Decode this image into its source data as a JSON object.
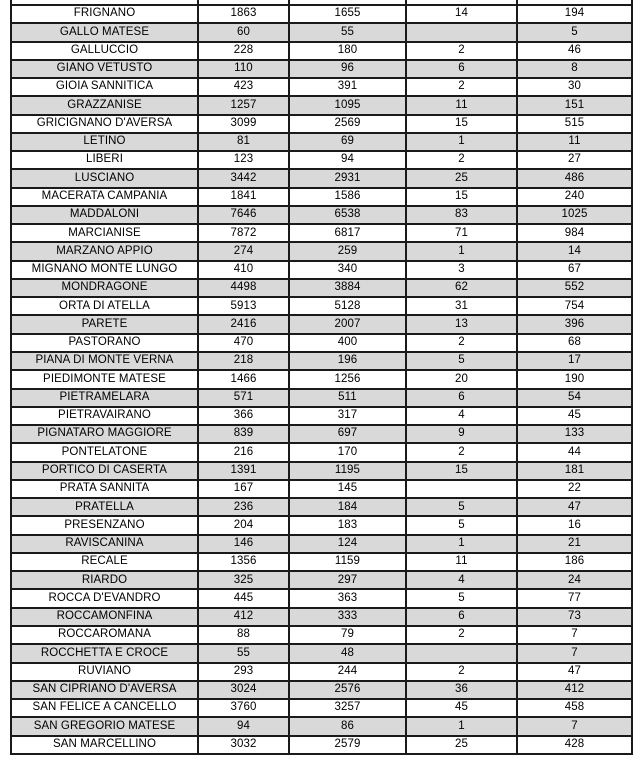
{
  "table": {
    "rows": [
      [
        "FRIGNANO",
        "1863",
        "1655",
        "14",
        "194"
      ],
      [
        "GALLO MATESE",
        "60",
        "55",
        "",
        "5"
      ],
      [
        "GALLUCCIO",
        "228",
        "180",
        "2",
        "46"
      ],
      [
        "GIANO VETUSTO",
        "110",
        "96",
        "6",
        "8"
      ],
      [
        "GIOIA SANNITICA",
        "423",
        "391",
        "2",
        "30"
      ],
      [
        "GRAZZANISE",
        "1257",
        "1095",
        "11",
        "151"
      ],
      [
        "GRICIGNANO D'AVERSA",
        "3099",
        "2569",
        "15",
        "515"
      ],
      [
        "LETINO",
        "81",
        "69",
        "1",
        "11"
      ],
      [
        "LIBERI",
        "123",
        "94",
        "2",
        "27"
      ],
      [
        "LUSCIANO",
        "3442",
        "2931",
        "25",
        "486"
      ],
      [
        "MACERATA CAMPANIA",
        "1841",
        "1586",
        "15",
        "240"
      ],
      [
        "MADDALONI",
        "7646",
        "6538",
        "83",
        "1025"
      ],
      [
        "MARCIANISE",
        "7872",
        "6817",
        "71",
        "984"
      ],
      [
        "MARZANO APPIO",
        "274",
        "259",
        "1",
        "14"
      ],
      [
        "MIGNANO MONTE LUNGO",
        "410",
        "340",
        "3",
        "67"
      ],
      [
        "MONDRAGONE",
        "4498",
        "3884",
        "62",
        "552"
      ],
      [
        "ORTA DI ATELLA",
        "5913",
        "5128",
        "31",
        "754"
      ],
      [
        "PARETE",
        "2416",
        "2007",
        "13",
        "396"
      ],
      [
        "PASTORANO",
        "470",
        "400",
        "2",
        "68"
      ],
      [
        "PIANA DI MONTE VERNA",
        "218",
        "196",
        "5",
        "17"
      ],
      [
        "PIEDIMONTE MATESE",
        "1466",
        "1256",
        "20",
        "190"
      ],
      [
        "PIETRAMELARA",
        "571",
        "511",
        "6",
        "54"
      ],
      [
        "PIETRAVAIRANO",
        "366",
        "317",
        "4",
        "45"
      ],
      [
        "PIGNATARO MAGGIORE",
        "839",
        "697",
        "9",
        "133"
      ],
      [
        "PONTELATONE",
        "216",
        "170",
        "2",
        "44"
      ],
      [
        "PORTICO DI CASERTA",
        "1391",
        "1195",
        "15",
        "181"
      ],
      [
        "PRATA SANNITA",
        "167",
        "145",
        "",
        "22"
      ],
      [
        "PRATELLA",
        "236",
        "184",
        "5",
        "47"
      ],
      [
        "PRESENZANO",
        "204",
        "183",
        "5",
        "16"
      ],
      [
        "RAVISCANINA",
        "146",
        "124",
        "1",
        "21"
      ],
      [
        "RECALE",
        "1356",
        "1159",
        "11",
        "186"
      ],
      [
        "RIARDO",
        "325",
        "297",
        "4",
        "24"
      ],
      [
        "ROCCA D'EVANDRO",
        "445",
        "363",
        "5",
        "77"
      ],
      [
        "ROCCAMONFINA",
        "412",
        "333",
        "6",
        "73"
      ],
      [
        "ROCCAROMANA",
        "88",
        "79",
        "2",
        "7"
      ],
      [
        "ROCCHETTA E CROCE",
        "55",
        "48",
        "",
        "7"
      ],
      [
        "RUVIANO",
        "293",
        "244",
        "2",
        "47"
      ],
      [
        "SAN CIPRIANO D'AVERSA",
        "3024",
        "2576",
        "36",
        "412"
      ],
      [
        "SAN FELICE A CANCELLO",
        "3760",
        "3257",
        "45",
        "458"
      ],
      [
        "SAN GREGORIO MATESE",
        "94",
        "86",
        "1",
        "7"
      ],
      [
        "SAN MARCELLINO",
        "3032",
        "2579",
        "25",
        "428"
      ]
    ],
    "partial_top_row": [
      "",
      "",
      "",
      "",
      ""
    ]
  },
  "colors": {
    "row_base": "#ffffff",
    "row_alt": "#d9d9d9",
    "border": "#1a1a1a",
    "text": "#000000"
  }
}
